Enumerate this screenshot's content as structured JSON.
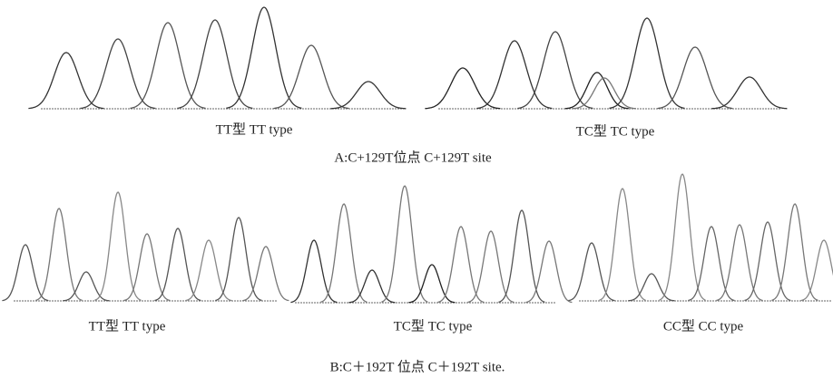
{
  "panel_a": {
    "caption": "A:C+129T位点 C+129T site",
    "labels": [
      "TT型 TT type",
      "TC型 TC type"
    ]
  },
  "panel_b": {
    "caption": "B:C＋192T 位点 C＋192T site.",
    "labels": [
      "TT型 TT type",
      "TC型 TC type",
      "CC型 CC type"
    ]
  }
}
